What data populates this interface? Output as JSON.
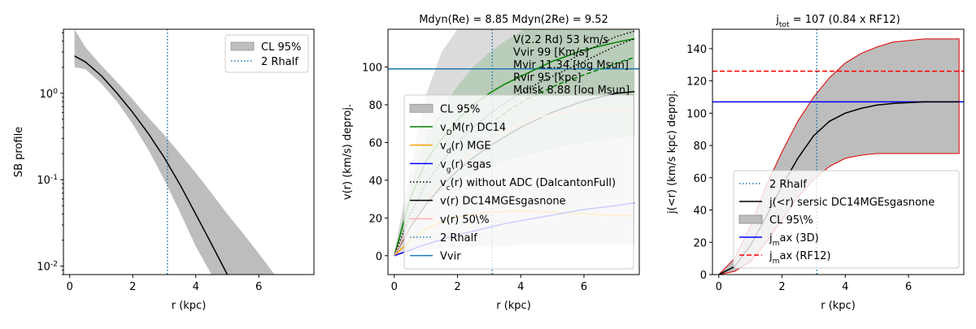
{
  "figure": {
    "background": "#ffffff"
  },
  "chart_data": [
    {
      "type": "line",
      "title": "",
      "xlabel": "r (kpc)",
      "ylabel": "SB profile",
      "xlim": [
        -0.2,
        7.75
      ],
      "ylim": [
        0.008,
        5.5
      ],
      "yscale": "log",
      "xticks": [
        0,
        2,
        4,
        6
      ],
      "yticks": [
        {
          "value": 0.01,
          "label": "10^{-2}"
        },
        {
          "value": 0.1,
          "label": "10^{-1}"
        },
        {
          "value": 1,
          "label": "10^{0}"
        }
      ],
      "legend": {
        "position": "upper-right",
        "entries": [
          {
            "label": "CL 95%",
            "style": "fill",
            "color": "#bdbdbd"
          },
          {
            "label": "2 Rhalf",
            "style": "dotted",
            "color": "#1f77b4"
          }
        ]
      },
      "series": [
        {
          "name": "",
          "style": "solid",
          "color": "#000000",
          "x": [
            0.15,
            0.5,
            1.0,
            1.5,
            2.0,
            2.5,
            3.0,
            3.5,
            4.0,
            4.5,
            5.0
          ],
          "values": [
            2.7,
            2.3,
            1.6,
            1.0,
            0.6,
            0.34,
            0.18,
            0.088,
            0.04,
            0.018,
            0.008
          ]
        },
        {
          "name": "CL 95%",
          "style": "band",
          "color": "#bdbdbd",
          "x": [
            0.15,
            0.5,
            1.0,
            1.5,
            2.0,
            2.5,
            3.0,
            3.5,
            4.0,
            4.5,
            5.0,
            5.5,
            6.0,
            6.5
          ],
          "upper": [
            5.5,
            3.4,
            2.1,
            1.35,
            0.85,
            0.52,
            0.33,
            0.2,
            0.12,
            0.07,
            0.04,
            0.024,
            0.014,
            0.008
          ],
          "lower": [
            2.0,
            1.9,
            1.3,
            0.8,
            0.44,
            0.22,
            0.1,
            0.042,
            0.017,
            0.008,
            0.008,
            0.008,
            0.008,
            0.008
          ]
        }
      ],
      "vlines": [
        {
          "x": 3.1,
          "label": "2 Rhalf",
          "color": "#1f77b4",
          "style": "dotted"
        }
      ]
    },
    {
      "type": "line",
      "title": "Mdyn(Re) = 8.85  Mdyn(2Re) = 9.52",
      "xlabel": "r (kpc)",
      "ylabel": "v(r) (km/s) deproj.",
      "xlim": [
        -0.2,
        7.75
      ],
      "ylim": [
        -10,
        120
      ],
      "xticks": [
        0,
        2,
        4,
        6
      ],
      "yticks": [
        0,
        20,
        40,
        60,
        80,
        100
      ],
      "annotations": [
        "V(2.2 Rd) 53 km/s",
        "Vvir 99 [Km/s]",
        "Mvir 11.34 [log Msun]",
        "Rvir 95 [kpc]",
        "Mdisk 8.88 [log Msun]"
      ],
      "legend": {
        "position": "lower-right",
        "entries": [
          {
            "label": "CL 95%",
            "style": "fill",
            "color": "#bdbdbd"
          },
          {
            "label": "v_DM(r) DC14",
            "style": "solid",
            "color": "#008000"
          },
          {
            "label": "v_d(r) MGE",
            "style": "solid",
            "color": "#ffa500"
          },
          {
            "label": "v_g(r) sgas",
            "style": "solid",
            "color": "#0000ff"
          },
          {
            "label": "v_c(r) without ADC (DalcantonFull)",
            "style": "dotted",
            "color": "#000000"
          },
          {
            "label": "v(r) DC14MGEsgasnone",
            "style": "solid",
            "color": "#000000"
          },
          {
            "label": "v(r) 50\\%",
            "style": "solid",
            "color": "#ffb0b0"
          },
          {
            "label": "2 Rhalf",
            "style": "dotted",
            "color": "#1f77b4"
          },
          {
            "label": "Vvir",
            "style": "solid",
            "color": "#1f77b4"
          }
        ]
      },
      "series": [
        {
          "name": "v(r) DC14MGEsgasnone",
          "style": "solid",
          "color": "#000000",
          "x": [
            0,
            0.5,
            1,
            1.5,
            2,
            2.5,
            3,
            3.5,
            4,
            4.5,
            5,
            5.5,
            6,
            6.5,
            7,
            7.6
          ],
          "values": [
            0,
            15,
            27,
            37,
            45,
            52,
            58,
            63,
            68,
            72,
            76,
            79,
            82,
            84,
            86,
            87
          ]
        },
        {
          "name": "v_DM(r) DC14",
          "style": "solid",
          "color": "#008000",
          "x": [
            0,
            0.5,
            1,
            1.5,
            2,
            2.5,
            3,
            3.5,
            4,
            4.5,
            5,
            5.5,
            6,
            6.5,
            7,
            7.6
          ],
          "values": [
            0,
            30,
            50,
            62,
            72,
            80,
            86,
            91,
            95,
            99,
            103,
            106,
            109,
            111,
            113,
            115
          ]
        },
        {
          "name": "v_DM(r) DC14 (dashed)",
          "style": "dashed",
          "color": "#008000",
          "x": [
            3.2,
            3.7,
            4.2,
            4.7,
            5.2,
            5.7,
            6.2,
            6.7,
            7.2,
            7.6
          ],
          "values": [
            72,
            78,
            83,
            87,
            91,
            94,
            97,
            100,
            103,
            105
          ]
        },
        {
          "name": "v_c(r) without ADC (DalcantonFull)",
          "style": "dotted",
          "color": "#000000",
          "x": [
            0,
            0.5,
            1,
            1.5,
            2,
            2.5,
            3,
            3.5,
            4,
            4.5,
            5,
            5.5,
            6,
            6.5,
            7,
            7.6
          ],
          "values": [
            0,
            22,
            38,
            50,
            60,
            68,
            75,
            81,
            86,
            91,
            95,
            99,
            103,
            107,
            111,
            115
          ]
        },
        {
          "name": "v_c(r) dotted upper",
          "style": "dotted",
          "color": "#000000",
          "x": [
            5.5,
            6,
            6.5,
            7,
            7.6
          ],
          "values": [
            103,
            108,
            112,
            116,
            119
          ]
        },
        {
          "name": "v_d(r) MGE",
          "style": "solid",
          "color": "#ffa500",
          "x": [
            0,
            0.5,
            1,
            1.5,
            2,
            2.5,
            3,
            3.5,
            4,
            4.5,
            5,
            5.5,
            6,
            6.5,
            7,
            7.6
          ],
          "values": [
            0,
            8,
            14,
            18,
            20.5,
            22,
            23,
            23.5,
            23.7,
            23.5,
            23,
            22.6,
            22.2,
            21.8,
            21.4,
            21
          ]
        },
        {
          "name": "v_g(r) sgas",
          "style": "solid",
          "color": "#0000ff",
          "x": [
            0,
            0.5,
            1,
            1.5,
            2,
            2.5,
            3,
            3.5,
            4,
            4.5,
            5,
            5.5,
            6,
            6.5,
            7,
            7.6
          ],
          "values": [
            0,
            3,
            6,
            8.5,
            11,
            13,
            15,
            17,
            18.5,
            20,
            21.5,
            23,
            24.5,
            25.5,
            26.5,
            28
          ]
        },
        {
          "name": "v(r) 50\\%",
          "style": "solid",
          "color": "#ffb0b0",
          "x": [
            0,
            0.5,
            1,
            1.5,
            2,
            2.5,
            3,
            3.5,
            4,
            4.5,
            5,
            5.5,
            6,
            6.5,
            7,
            7.6
          ],
          "values": [
            0,
            16,
            28,
            39,
            48,
            55,
            61,
            66,
            70,
            73,
            75,
            76,
            77,
            77,
            77,
            77
          ]
        },
        {
          "name": "CL 95%",
          "style": "band",
          "color": "#bdbdbd",
          "x": [
            0,
            0.5,
            1,
            1.5,
            2,
            2.5,
            3,
            3.5,
            4,
            4.5,
            5,
            5.5,
            6,
            6.5,
            7,
            7.6
          ],
          "upper": [
            2,
            45,
            85,
            108,
            120,
            120,
            120,
            120,
            120,
            120,
            120,
            120,
            120,
            120,
            120,
            120
          ],
          "lower": [
            0,
            2,
            3,
            4,
            4,
            5,
            5,
            5,
            6,
            6,
            6,
            6,
            6,
            6,
            6,
            6
          ]
        }
      ],
      "hlines": [
        {
          "y": 99,
          "label": "Vvir",
          "color": "#1f77b4",
          "style": "solid"
        }
      ],
      "vlines": [
        {
          "x": 3.1,
          "label": "2 Rhalf",
          "color": "#1f77b4",
          "style": "dotted"
        }
      ]
    },
    {
      "type": "line",
      "title": "j_{tot} = 107 (0.84 x RF12)",
      "xlabel": "r (kpc)",
      "ylabel": "j(<r) (km/s kpc) deproj.",
      "xlim": [
        -0.2,
        7.75
      ],
      "ylim": [
        0,
        152
      ],
      "xticks": [
        0,
        2,
        4,
        6
      ],
      "yticks": [
        0,
        20,
        40,
        60,
        80,
        100,
        120,
        140
      ],
      "legend": {
        "position": "lower-right",
        "entries": [
          {
            "label": "2 Rhalf",
            "style": "dotted",
            "color": "#1f77b4"
          },
          {
            "label": "j(<r) sersic DC14MGEsgasnone",
            "style": "solid",
            "color": "#000000"
          },
          {
            "label": "CL 95\\%",
            "style": "fill",
            "color": "#bdbdbd"
          },
          {
            "label": "j_max (3D)",
            "style": "solid",
            "color": "#0000ff"
          },
          {
            "label": "j_max (RF12)",
            "style": "dashed",
            "color": "#ff0000"
          }
        ]
      },
      "series": [
        {
          "name": "j(<r) sersic DC14MGEsgasnone",
          "style": "solid",
          "color": "#000000",
          "x": [
            0,
            0.5,
            1,
            1.5,
            2,
            2.5,
            3,
            3.5,
            4,
            4.5,
            5,
            5.5,
            6,
            6.5,
            7,
            7.6
          ],
          "values": [
            0,
            5,
            18,
            36,
            55,
            72,
            86,
            95,
            100,
            103,
            105,
            106,
            106.5,
            107,
            107,
            107
          ]
        },
        {
          "name": "CL 95\\%",
          "style": "band",
          "color": "#bdbdbd",
          "x": [
            0,
            0.5,
            1,
            1.5,
            2,
            2.5,
            3,
            3.5,
            4,
            4.5,
            5,
            5.5,
            6,
            6.5,
            7,
            7.6
          ],
          "upper": [
            0,
            10,
            30,
            55,
            76,
            95,
            110,
            122,
            131,
            137,
            141,
            144,
            145,
            146,
            146,
            146
          ],
          "lower": [
            0,
            2,
            8,
            20,
            34,
            48,
            59,
            67,
            72,
            74,
            75,
            75,
            75,
            75,
            75,
            75
          ]
        }
      ],
      "hlines": [
        {
          "y": 107,
          "label": "j_max (3D)",
          "color": "#0000ff",
          "style": "solid"
        },
        {
          "y": 126,
          "label": "j_max (RF12)",
          "color": "#ff0000",
          "style": "dashed"
        }
      ],
      "vlines": [
        {
          "x": 3.1,
          "label": "2 Rhalf",
          "color": "#1f77b4",
          "style": "dotted"
        }
      ]
    }
  ]
}
